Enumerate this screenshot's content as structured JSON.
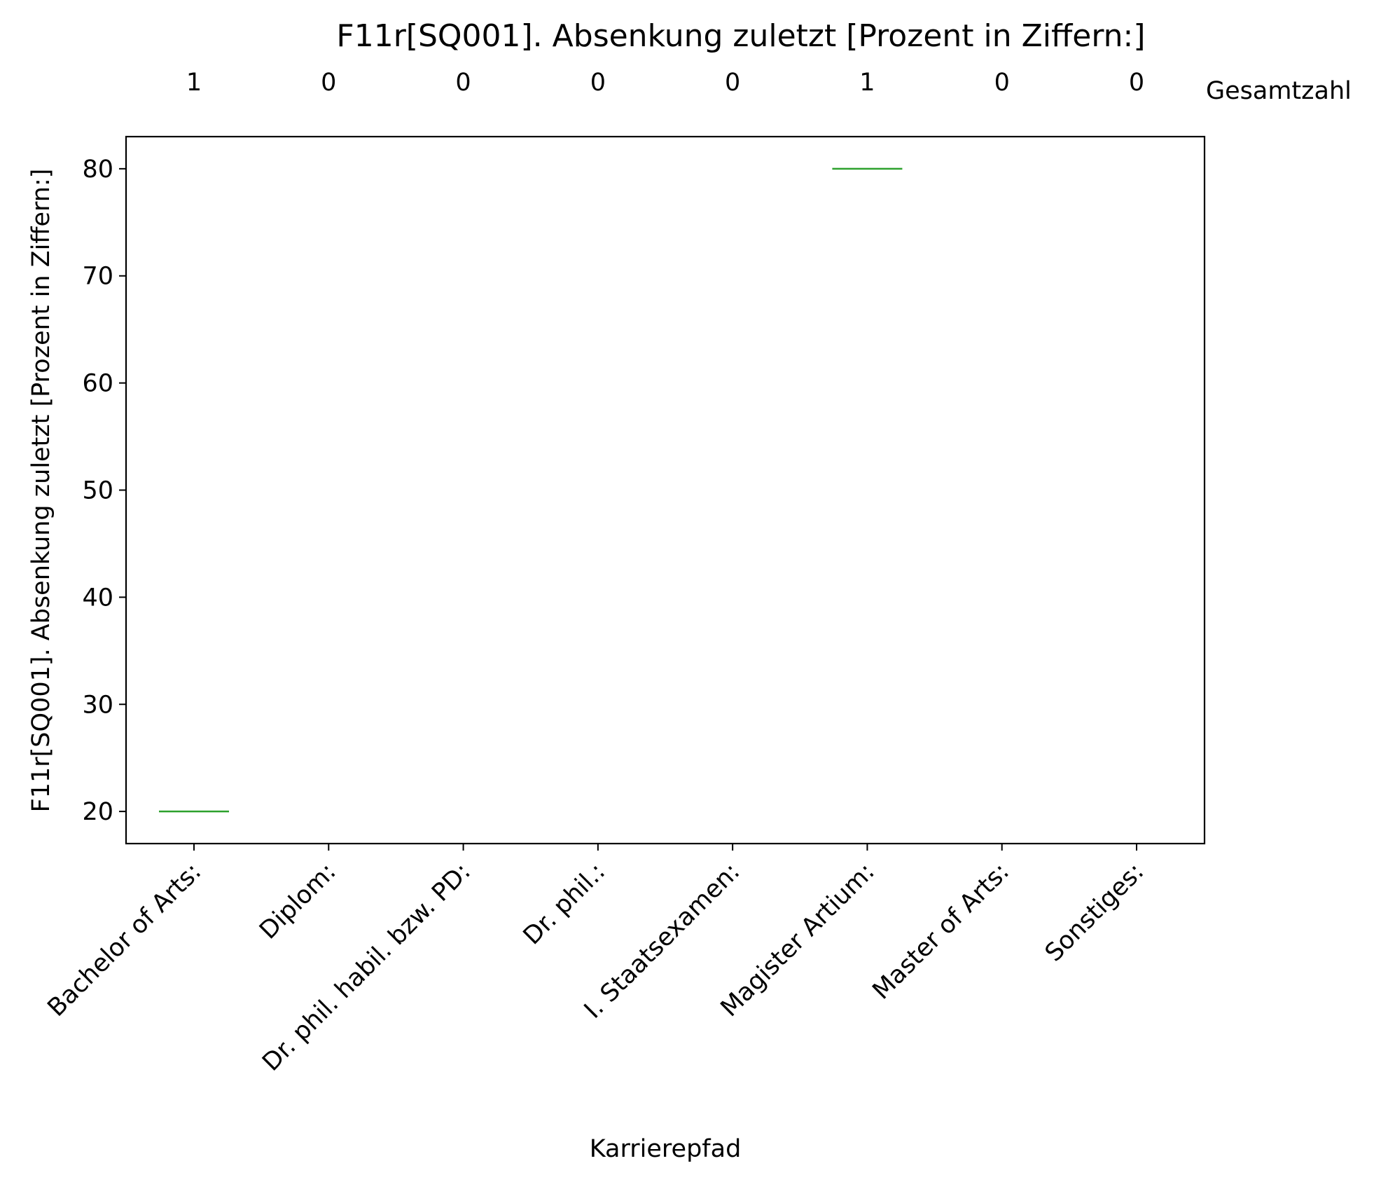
{
  "chart_data": {
    "type": "box",
    "title": "F11r[SQ001]. Absenkung zuletzt [Prozent in Ziffern:]",
    "xlabel": "Karrierepfad",
    "ylabel": "F11r[SQ001]. Absenkung zuletzt [Prozent in Ziffern:]",
    "count_label": "Gesamtzahl",
    "categories": [
      "Bachelor of Arts:",
      "Diplom:",
      "Dr. phil. habil. bzw. PD:",
      "Dr. phil.:",
      "I. Staatsexamen:",
      "Magister Artium:",
      "Master of Arts:",
      "Sonstiges:"
    ],
    "counts": [
      1,
      0,
      0,
      0,
      0,
      1,
      0,
      0
    ],
    "medians": [
      20,
      null,
      null,
      null,
      null,
      80,
      null,
      null
    ],
    "ylim": [
      17,
      83
    ],
    "yticks": [
      20,
      30,
      40,
      50,
      60,
      70,
      80
    ],
    "grid": false,
    "median_color": "#2ca02c"
  }
}
